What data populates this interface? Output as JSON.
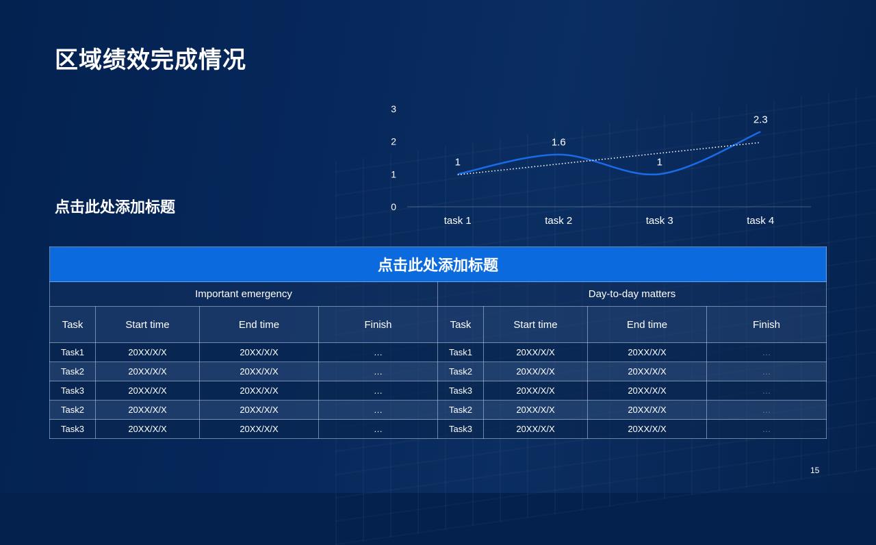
{
  "title": "区域绩效完成情况",
  "subtitle": "点击此处添加标题",
  "page_number": "15",
  "chart_data": {
    "type": "line",
    "categories": [
      "task 1",
      "task 2",
      "task 3",
      "task 4"
    ],
    "series": [
      {
        "values": [
          1,
          1.6,
          1,
          2.3
        ]
      }
    ],
    "data_labels": [
      "1",
      "1.6",
      "1",
      "2.3"
    ],
    "trendline": {
      "type": "linear",
      "style": "dotted"
    },
    "yticks": [
      "0",
      "1",
      "2",
      "3"
    ],
    "ylim": [
      0,
      3
    ],
    "grid": false,
    "line_color": "#1a6be8",
    "trend_color": "#ffffff"
  },
  "table": {
    "header": "点击此处添加标题",
    "groups": [
      "Important emergency",
      "Day-to-day matters"
    ],
    "columns": [
      "Task",
      "Start time",
      "End time",
      "Finish",
      "Task",
      "Start time",
      "End time",
      "Finish"
    ],
    "rows": [
      [
        "Task1",
        "20XX/X/X",
        "20XX/X/X",
        "…",
        "Task1",
        "20XX/X/X",
        "20XX/X/X",
        "…"
      ],
      [
        "Task2",
        "20XX/X/X",
        "20XX/X/X",
        "…",
        "Task2",
        "20XX/X/X",
        "20XX/X/X",
        "…"
      ],
      [
        "Task3",
        "20XX/X/X",
        "20XX/X/X",
        "…",
        "Task3",
        "20XX/X/X",
        "20XX/X/X",
        "…"
      ],
      [
        "Task2",
        "20XX/X/X",
        "20XX/X/X",
        "…",
        "Task2",
        "20XX/X/X",
        "20XX/X/X",
        "…"
      ],
      [
        "Task3",
        "20XX/X/X",
        "20XX/X/X",
        "…",
        "Task3",
        "20XX/X/X",
        "20XX/X/X",
        "…"
      ]
    ],
    "header_color": "#0a6ade"
  }
}
